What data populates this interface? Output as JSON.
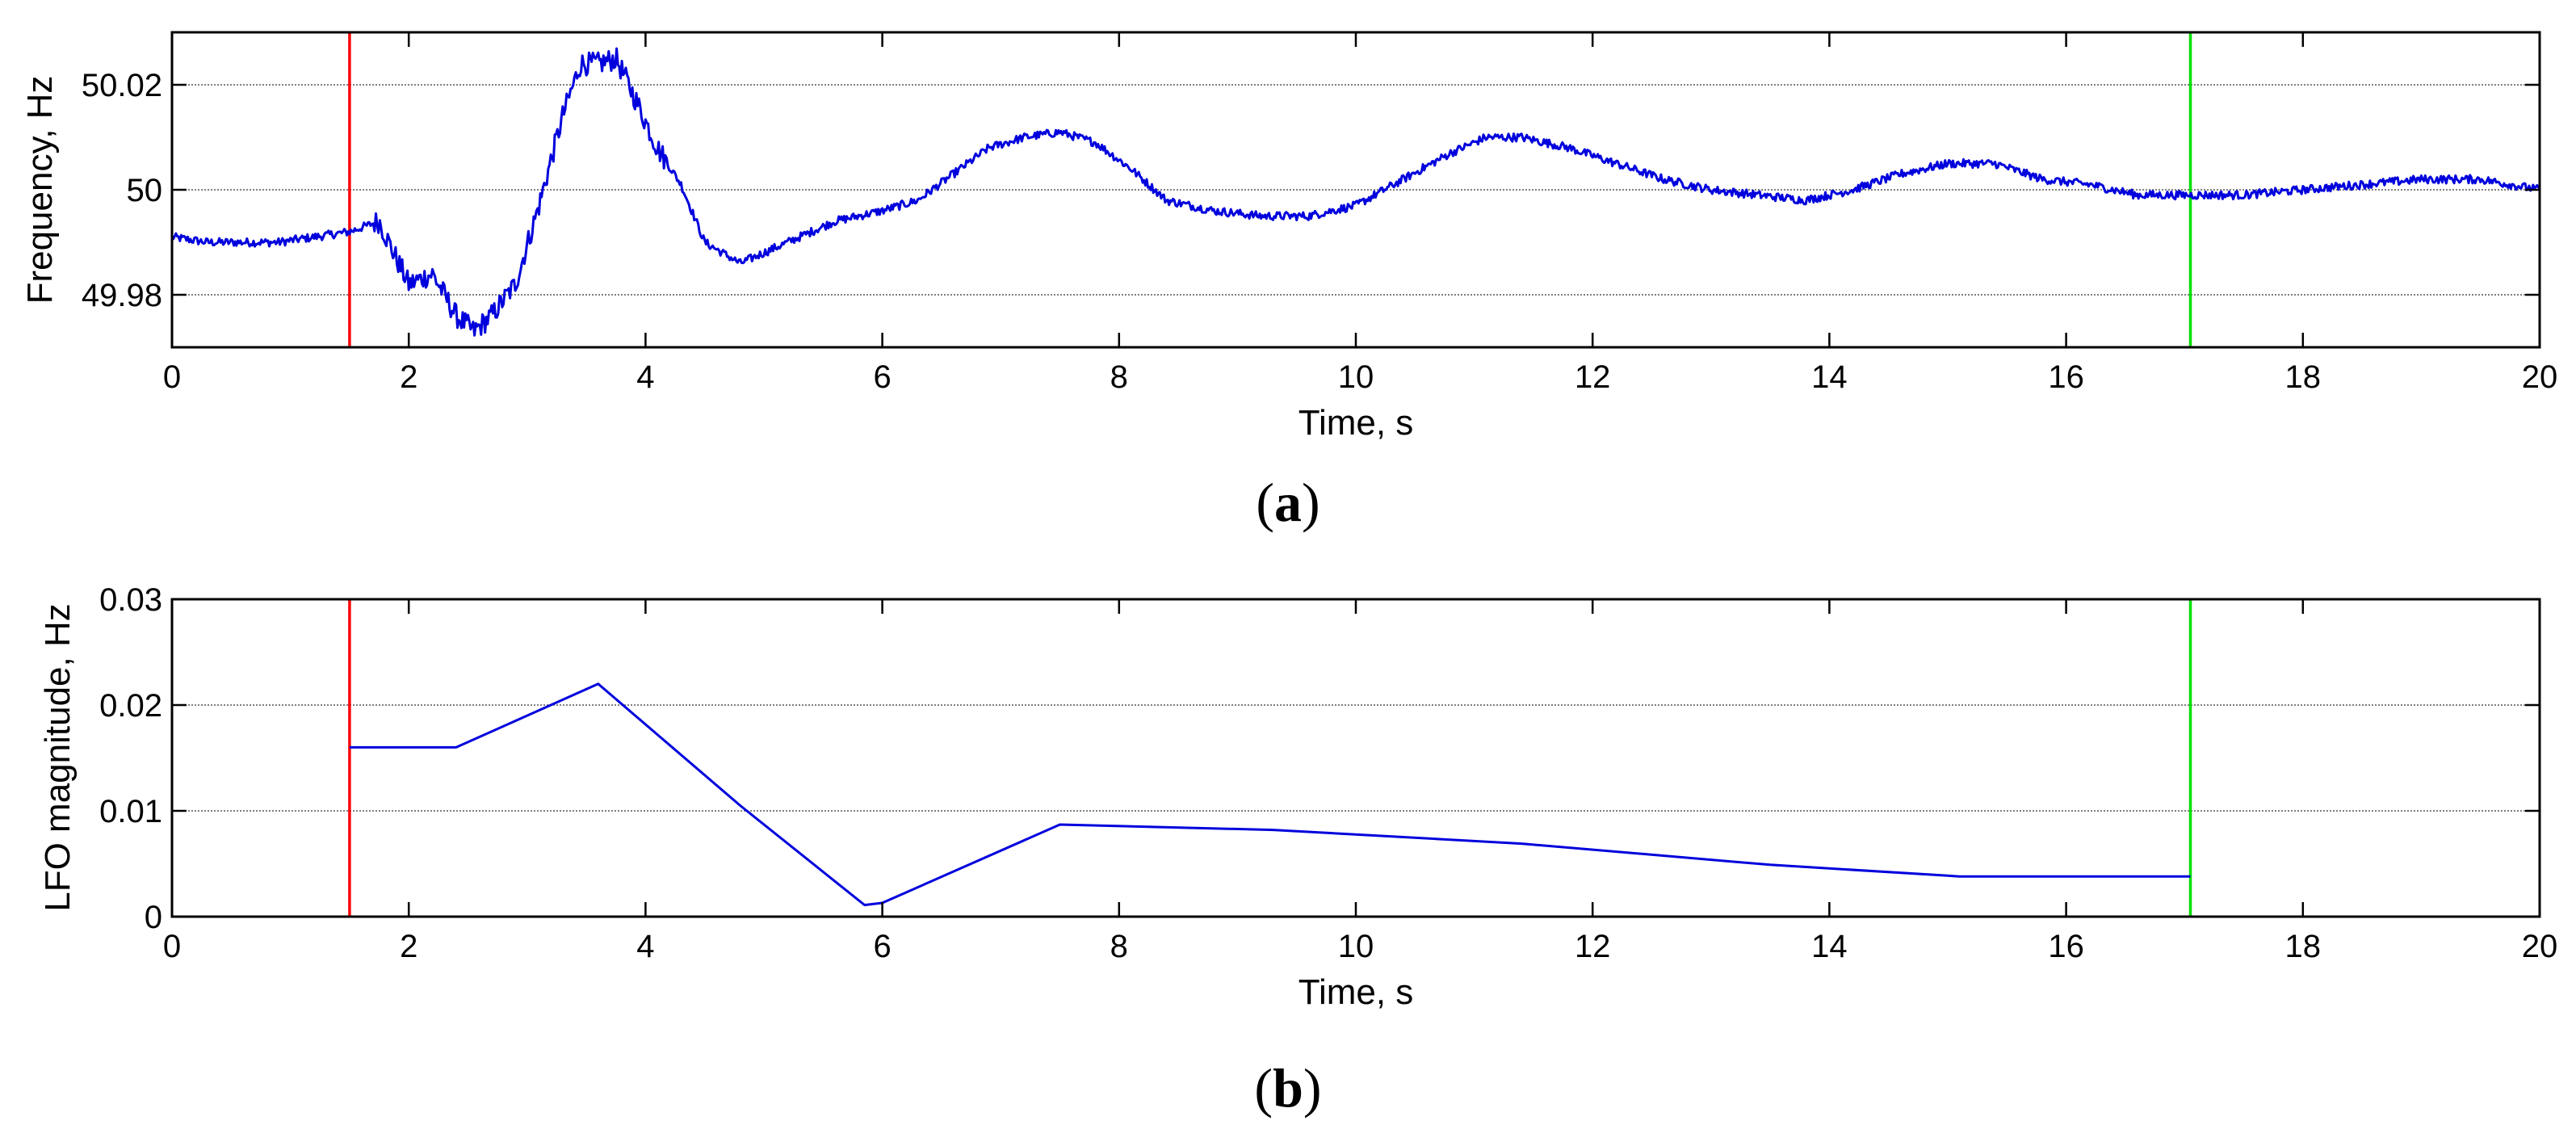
{
  "chart_data": [
    {
      "type": "line",
      "panel_label": "a",
      "xlabel": "Time, s",
      "ylabel": "Frequency, Hz",
      "xlim": [
        0,
        20
      ],
      "ylim": [
        49.97,
        50.03
      ],
      "xticks": [
        0,
        2,
        4,
        6,
        8,
        10,
        12,
        14,
        16,
        18,
        20
      ],
      "xtick_labels": [
        "0",
        "2",
        "4",
        "6",
        "8",
        "10",
        "12",
        "14",
        "16",
        "18",
        "20"
      ],
      "yticks": [
        49.98,
        50.0,
        50.02
      ],
      "ytick_labels": [
        "49.98",
        "50",
        "50.02"
      ],
      "grid": "horizontal",
      "vlines": [
        {
          "x": 1.5,
          "color": "#ff0000",
          "name": "start-marker"
        },
        {
          "x": 17.05,
          "color": "#00e000",
          "name": "end-marker"
        }
      ],
      "series": [
        {
          "name": "frequency",
          "color": "#0000dd",
          "x": [
            0,
            0.3,
            0.6,
            0.9,
            1.2,
            1.5,
            1.75,
            1.85,
            2.0,
            2.2,
            2.4,
            2.55,
            2.7,
            2.9,
            3.1,
            3.3,
            3.45,
            3.6,
            3.75,
            3.9,
            4.1,
            4.3,
            4.5,
            4.8,
            5.2,
            5.6,
            6.0,
            6.3,
            6.6,
            6.9,
            7.2,
            7.5,
            7.8,
            8.1,
            8.4,
            8.8,
            9.2,
            9.6,
            10.0,
            10.4,
            10.8,
            11.1,
            11.4,
            11.8,
            12.2,
            12.6,
            13.0,
            13.4,
            13.8,
            14.2,
            14.6,
            15.0,
            15.4,
            15.8,
            16.2,
            16.6,
            17.0,
            17.5,
            18.0,
            18.5,
            19.0,
            19.5,
            20.0
          ],
          "y": [
            49.991,
            49.99,
            49.99,
            49.99,
            49.991,
            49.992,
            49.994,
            49.989,
            49.982,
            49.984,
            49.976,
            49.973,
            49.976,
            49.982,
            49.997,
            50.014,
            50.024,
            50.024,
            50.025,
            50.018,
            50.008,
            50.001,
            49.99,
            49.986,
            49.99,
            49.994,
            49.996,
            49.998,
            50.003,
            50.008,
            50.01,
            50.011,
            50.009,
            50.004,
            49.998,
            49.996,
            49.995,
            49.995,
            49.997,
            50.002,
            50.007,
            50.01,
            50.01,
            50.008,
            50.005,
            50.002,
            50.0,
            49.999,
            49.998,
            50.0,
            50.003,
            50.005,
            50.005,
            50.002,
            50.001,
            49.999,
            49.999,
            49.999,
            50.0,
            50.001,
            50.002,
            50.002,
            50.0
          ]
        }
      ]
    },
    {
      "type": "line",
      "panel_label": "b",
      "xlabel": "Time, s",
      "ylabel": "LFO magnitude, Hz",
      "xlim": [
        0,
        20
      ],
      "ylim": [
        0,
        0.03
      ],
      "xticks": [
        0,
        2,
        4,
        6,
        8,
        10,
        12,
        14,
        16,
        18,
        20
      ],
      "xtick_labels": [
        "0",
        "2",
        "4",
        "6",
        "8",
        "10",
        "12",
        "14",
        "16",
        "18",
        "20"
      ],
      "yticks": [
        0,
        0.01,
        0.02,
        0.03
      ],
      "ytick_labels": [
        "0",
        "0.01",
        "0.02",
        "0.03"
      ],
      "grid": "horizontal",
      "vlines": [
        {
          "x": 1.5,
          "color": "#ff0000",
          "name": "start-marker"
        },
        {
          "x": 17.05,
          "color": "#00e000",
          "name": "end-marker"
        }
      ],
      "series": [
        {
          "name": "lfo-magnitude",
          "color": "#0000dd",
          "x": [
            1.5,
            2.4,
            3.6,
            4.8,
            5.85,
            6.0,
            7.5,
            9.3,
            11.4,
            13.5,
            15.1,
            17.05
          ],
          "y": [
            0.016,
            0.016,
            0.022,
            0.0105,
            0.0011,
            0.0013,
            0.0087,
            0.0082,
            0.0069,
            0.0049,
            0.0038,
            0.0038
          ]
        }
      ]
    }
  ]
}
